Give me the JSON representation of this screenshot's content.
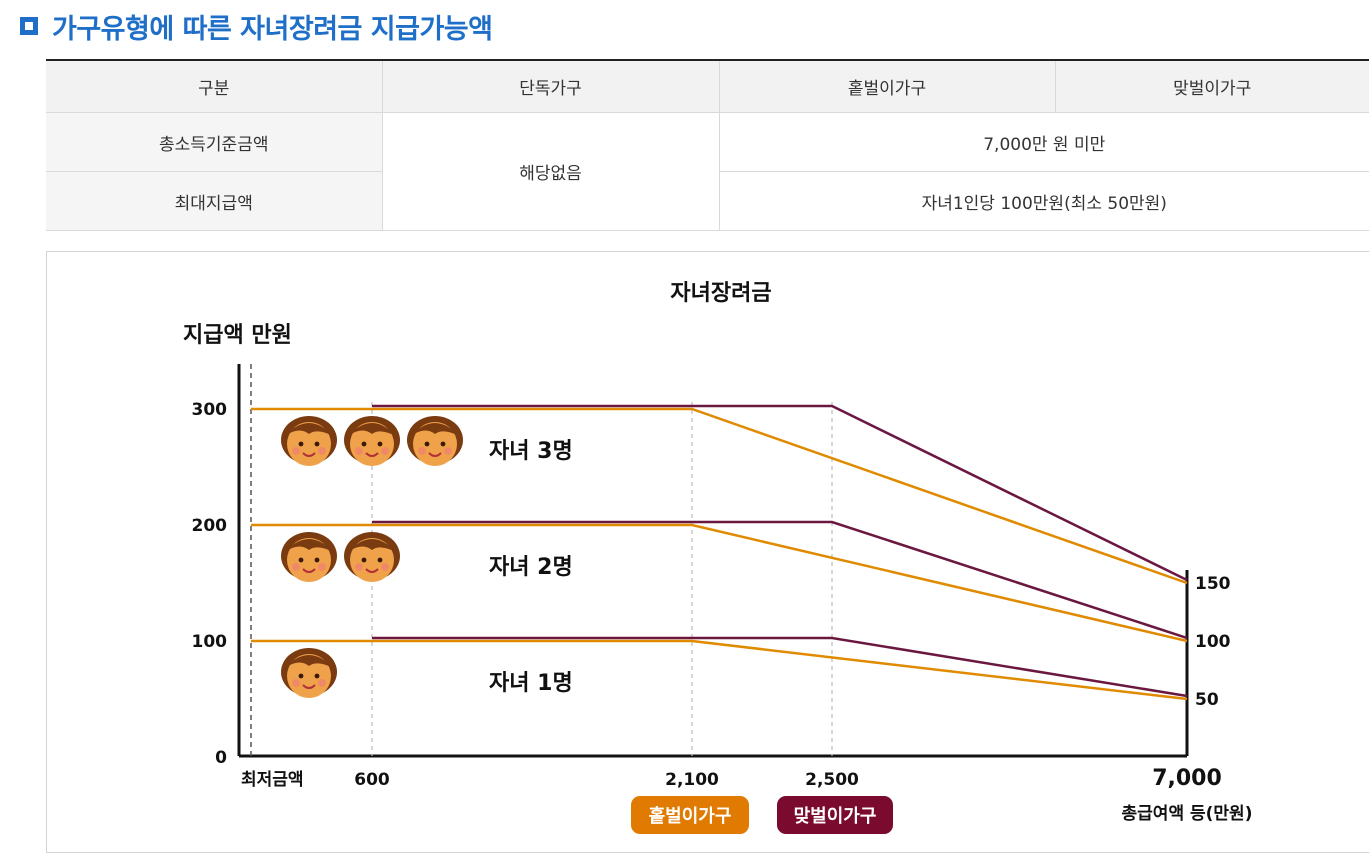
{
  "heading": {
    "title": "가구유형에 따른 자녀장려금 지급가능액"
  },
  "table": {
    "headers": [
      "구분",
      "단독가구",
      "홑벌이가구",
      "맞벌이가구"
    ],
    "row1_label": "총소득기준금액",
    "row2_label": "최대지급액",
    "single_value": "해당없음",
    "income_value": "7,000만 원 미만",
    "max_value": "자녀1인당 100만원(최소 50만원)"
  },
  "chart_data": {
    "type": "line",
    "title": "자녀장려금",
    "ylabel": "지급액 만원",
    "xlabel": "총급여액 등(만원)",
    "x_min_label": "최저금액",
    "ylim": [
      0,
      300
    ],
    "y_ticks_left": [
      "0",
      "100",
      "200",
      "300"
    ],
    "y_ticks_right": [
      "50",
      "100",
      "150"
    ],
    "x_ticks": [
      "600",
      "2,100",
      "2,500",
      "7,000"
    ],
    "groups": [
      {
        "label": "자녀 3명",
        "children": 3,
        "single_earner": [
          [
            0,
            300
          ],
          [
            2100,
            300
          ],
          [
            7000,
            150
          ]
        ],
        "dual_earner": [
          [
            600,
            300
          ],
          [
            2500,
            300
          ],
          [
            7000,
            150
          ]
        ]
      },
      {
        "label": "자녀 2명",
        "children": 2,
        "single_earner": [
          [
            0,
            200
          ],
          [
            2100,
            200
          ],
          [
            7000,
            100
          ]
        ],
        "dual_earner": [
          [
            600,
            200
          ],
          [
            2500,
            200
          ],
          [
            7000,
            100
          ]
        ]
      },
      {
        "label": "자녀 1명",
        "children": 1,
        "single_earner": [
          [
            0,
            100
          ],
          [
            2100,
            100
          ],
          [
            7000,
            50
          ]
        ],
        "dual_earner": [
          [
            600,
            100
          ],
          [
            2500,
            100
          ],
          [
            7000,
            50
          ]
        ]
      }
    ],
    "legend": [
      {
        "name": "홑벌이가구",
        "color": "#e07a00"
      },
      {
        "name": "맞벌이가구",
        "color": "#7a0a2e"
      }
    ],
    "colors": {
      "single_line": "#e08a00",
      "dual_line": "#6b1840",
      "grid": "#bbbbbb",
      "face": "#f0a24a",
      "hair": "#7a3b10"
    }
  }
}
